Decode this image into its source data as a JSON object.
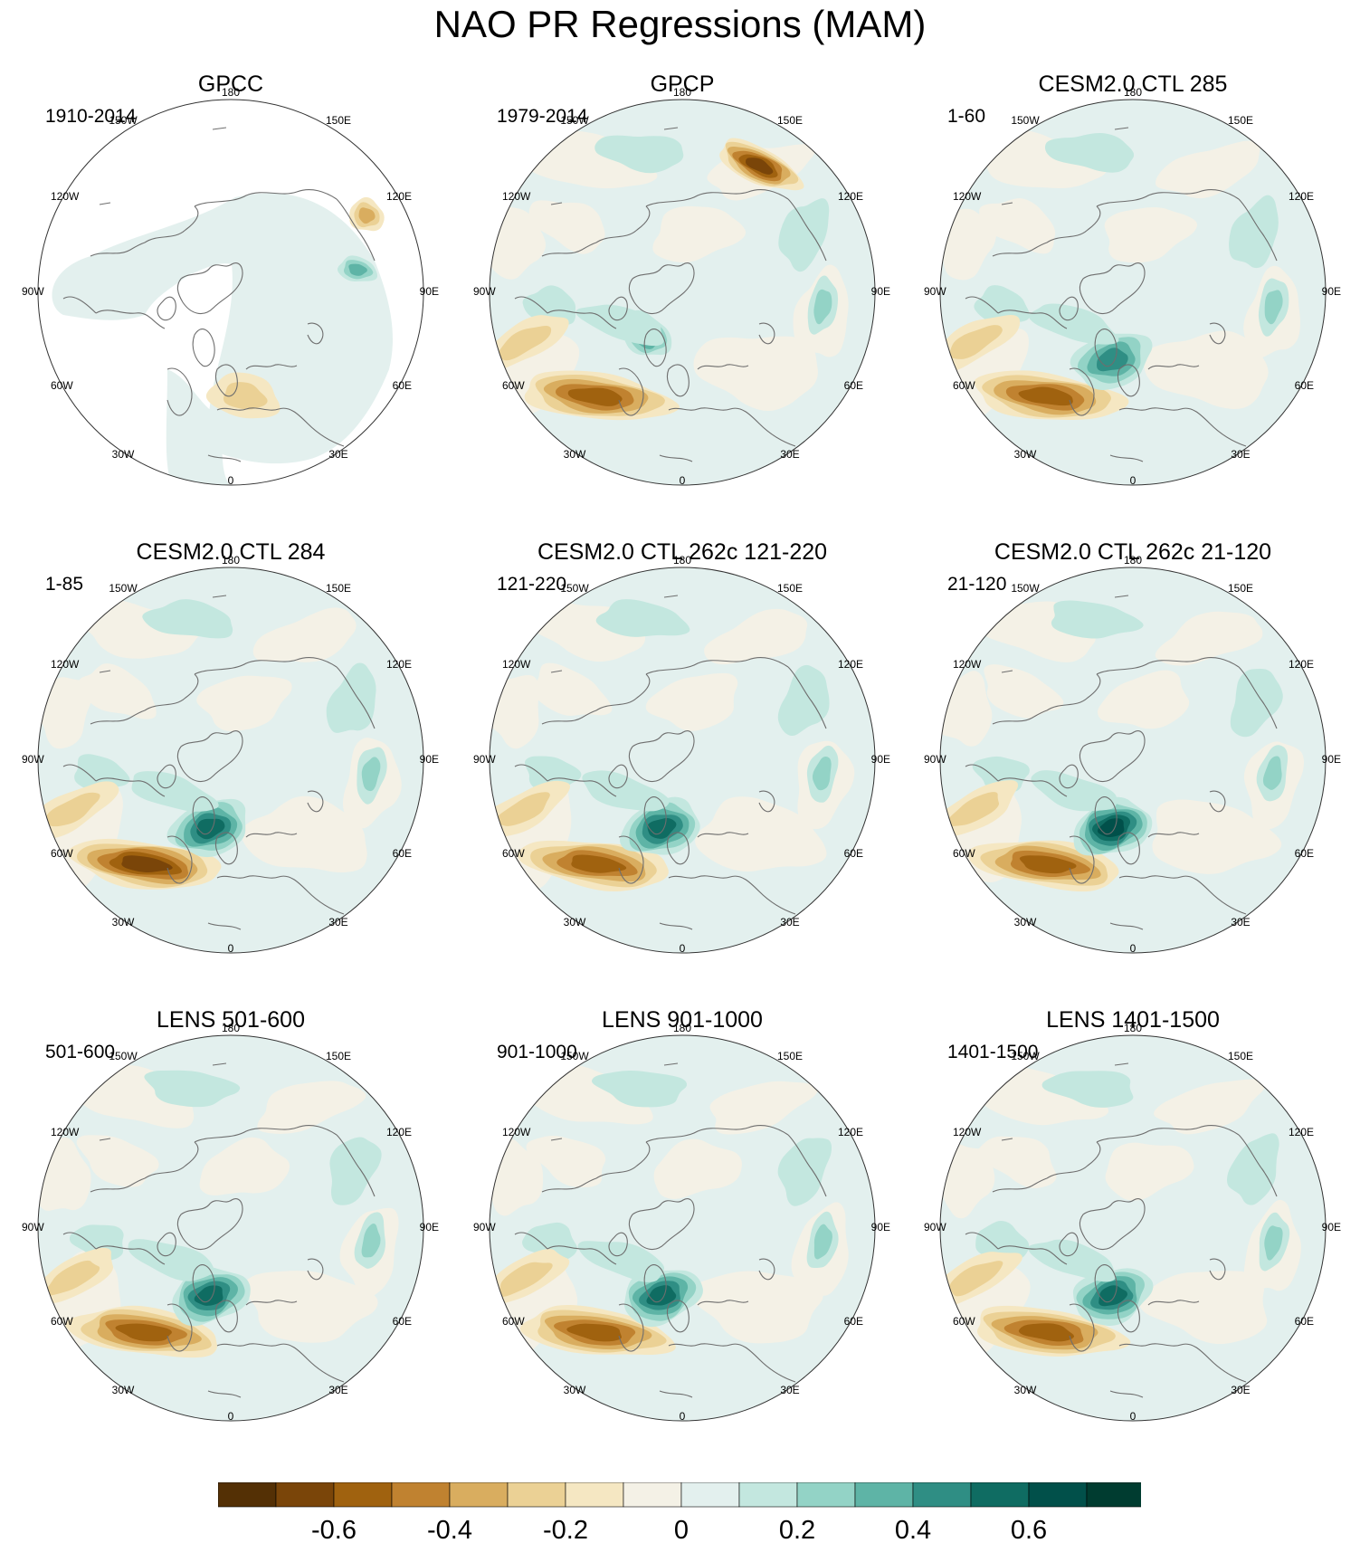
{
  "figure": {
    "title": "NAO PR Regressions (MAM)"
  },
  "longitude_labels": [
    "180",
    "150E",
    "120E",
    "90E",
    "60E",
    "30E",
    "0",
    "30W",
    "60W",
    "90W",
    "120W",
    "150W"
  ],
  "panels": [
    {
      "title": "GPCC",
      "period": "1910-2014",
      "land_only": true,
      "features": [
        {
          "region": "Central Europe",
          "sign": "neg",
          "strength": 0.2
        },
        {
          "region": "Siberia",
          "sign": "pos",
          "strength": 0.3
        },
        {
          "region": "Pacific coast",
          "sign": "neg",
          "strength": 0.3
        }
      ]
    },
    {
      "title": "GPCP",
      "period": "1979-2014",
      "land_only": false,
      "features": [
        {
          "region": "North Atlantic subtropics",
          "sign": "neg",
          "strength": 0.5
        },
        {
          "region": "North Pacific",
          "sign": "neg",
          "strength": 0.6
        },
        {
          "region": "Greenland Sea",
          "sign": "pos",
          "strength": 0.4
        }
      ]
    },
    {
      "title": "CESM2.0 CTL 285",
      "period": "1-60",
      "land_only": false,
      "features": [
        {
          "region": "North Atlantic subtropics",
          "sign": "neg",
          "strength": 0.5
        },
        {
          "region": "Nordic Seas",
          "sign": "pos",
          "strength": 0.4
        }
      ]
    },
    {
      "title": "CESM2.0 CTL 284",
      "period": "1-85",
      "land_only": false,
      "features": [
        {
          "region": "North Atlantic subtropics",
          "sign": "neg",
          "strength": 0.6
        },
        {
          "region": "Nordic Seas",
          "sign": "pos",
          "strength": 0.5
        }
      ]
    },
    {
      "title": "CESM2.0 CTL 262c 121-220",
      "period": "121-220",
      "land_only": false,
      "features": [
        {
          "region": "North Atlantic subtropics",
          "sign": "neg",
          "strength": 0.5
        },
        {
          "region": "Nordic Seas",
          "sign": "pos",
          "strength": 0.5
        }
      ]
    },
    {
      "title": "CESM2.0 CTL 262c 21-120",
      "period": "21-120",
      "land_only": false,
      "features": [
        {
          "region": "North Atlantic subtropics",
          "sign": "neg",
          "strength": 0.5
        },
        {
          "region": "Nordic Seas",
          "sign": "pos",
          "strength": 0.6
        }
      ]
    },
    {
      "title": "LENS 501-600",
      "period": "501-600",
      "land_only": false,
      "features": [
        {
          "region": "North Atlantic subtropics",
          "sign": "neg",
          "strength": 0.5
        },
        {
          "region": "Nordic Seas",
          "sign": "pos",
          "strength": 0.5
        }
      ]
    },
    {
      "title": "LENS 901-1000",
      "period": "901-1000",
      "land_only": false,
      "features": [
        {
          "region": "North Atlantic subtropics",
          "sign": "neg",
          "strength": 0.5
        },
        {
          "region": "Nordic Seas",
          "sign": "pos",
          "strength": 0.5
        }
      ]
    },
    {
      "title": "LENS 1401-1500",
      "period": "1401-1500",
      "land_only": false,
      "features": [
        {
          "region": "North Atlantic subtropics",
          "sign": "neg",
          "strength": 0.5
        },
        {
          "region": "Nordic Seas",
          "sign": "pos",
          "strength": 0.5
        }
      ]
    }
  ],
  "colorbar": {
    "colors": [
      "#543005",
      "#7a4509",
      "#a0620f",
      "#c08230",
      "#d9ad5f",
      "#ebd195",
      "#f5e7c2",
      "#f4f1e6",
      "#e3f0ee",
      "#c3e7df",
      "#93d3c6",
      "#5eb4a6",
      "#2f8e84",
      "#0f6c62",
      "#01504a",
      "#003c30"
    ],
    "tick_labels": [
      "-0.6",
      "-0.4",
      "-0.2",
      "0",
      "0.2",
      "0.4",
      "0.6"
    ]
  }
}
